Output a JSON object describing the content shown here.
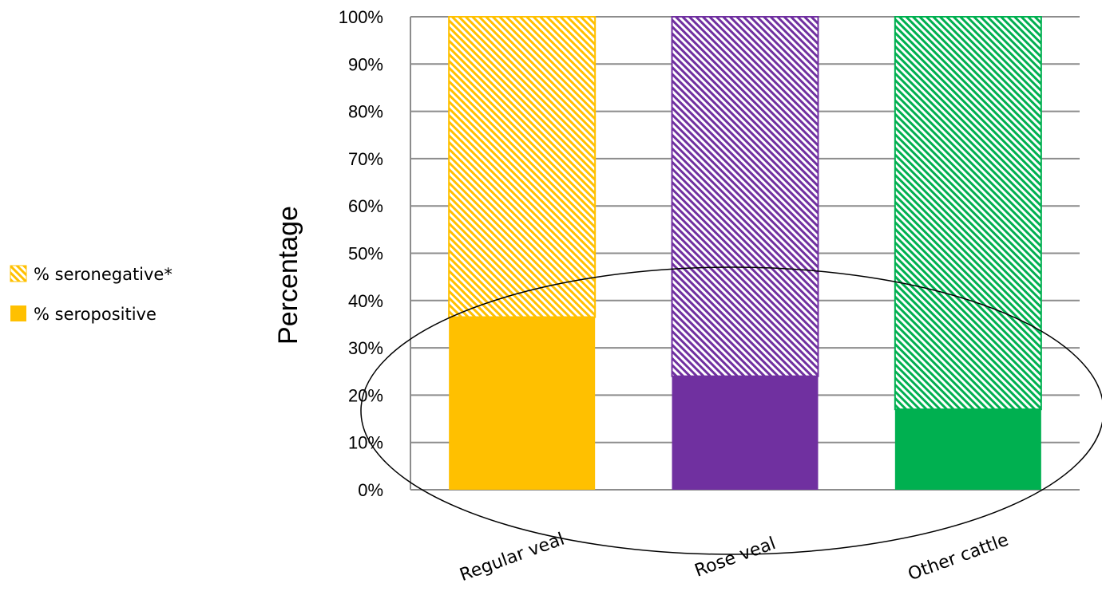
{
  "chart_data": {
    "type": "bar",
    "stacked": true,
    "percent": true,
    "ylabel": "Percentage",
    "xlabel": "",
    "ylim": [
      0,
      100
    ],
    "yticks": [
      "0%",
      "10%",
      "20%",
      "30%",
      "40%",
      "50%",
      "60%",
      "70%",
      "80%",
      "90%",
      "100%"
    ],
    "categories": [
      "Regular veal",
      "Rose veal",
      "Other cattle"
    ],
    "colors": [
      "#FFC000",
      "#7030A0",
      "#00B050"
    ],
    "series": [
      {
        "name": "% seropositive",
        "pattern": "solid",
        "values": [
          36.5,
          24,
          17
        ]
      },
      {
        "name": "% seronegative*",
        "pattern": "hatched",
        "values": [
          63.5,
          76,
          83
        ]
      }
    ],
    "legend_position": "left",
    "grid": true,
    "annotation": "ellipse encircling the seropositive portions"
  }
}
